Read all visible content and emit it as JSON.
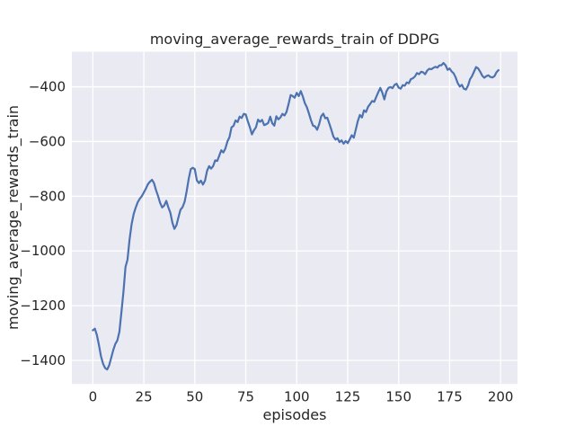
{
  "chart_data": {
    "type": "line",
    "title": "moving_average_rewards_train of DDPG",
    "xlabel": "episodes",
    "ylabel": "moving_average_rewards_train",
    "grid": true,
    "legend_position": "none",
    "xlim": [
      -10.3,
      208.3
    ],
    "ylim": [
      -1486,
      -272
    ],
    "x_ticks": [
      0,
      25,
      50,
      75,
      100,
      125,
      150,
      175,
      200
    ],
    "x_tick_labels": [
      "0",
      "25",
      "50",
      "75",
      "100",
      "125",
      "150",
      "175",
      "200"
    ],
    "y_ticks": [
      -400,
      -600,
      -800,
      -1000,
      -1200,
      -1400
    ],
    "y_tick_labels": [
      "−400",
      "−600",
      "−800",
      "−1000",
      "−1200",
      "−1400"
    ],
    "style": {
      "figure_bg": "#ffffff",
      "axes_bg": "#EAEAF2",
      "grid_color": "#ffffff",
      "line_color": "#4C72B0",
      "text_color": "#262626"
    },
    "series": [
      {
        "name": "moving_average_rewards_train",
        "x_start": 0,
        "x_step": 1,
        "values": [
          -1290,
          -1284,
          -1308,
          -1345,
          -1385,
          -1412,
          -1428,
          -1433,
          -1418,
          -1390,
          -1362,
          -1340,
          -1327,
          -1295,
          -1225,
          -1150,
          -1058,
          -1032,
          -958,
          -902,
          -865,
          -842,
          -822,
          -809,
          -800,
          -786,
          -772,
          -756,
          -747,
          -740,
          -752,
          -778,
          -800,
          -824,
          -841,
          -834,
          -817,
          -840,
          -860,
          -897,
          -919,
          -906,
          -876,
          -849,
          -840,
          -820,
          -783,
          -737,
          -701,
          -696,
          -701,
          -742,
          -752,
          -743,
          -757,
          -743,
          -708,
          -690,
          -699,
          -690,
          -669,
          -671,
          -652,
          -632,
          -640,
          -625,
          -600,
          -584,
          -548,
          -543,
          -523,
          -529,
          -509,
          -514,
          -499,
          -501,
          -526,
          -548,
          -574,
          -559,
          -548,
          -520,
          -528,
          -521,
          -540,
          -537,
          -532,
          -509,
          -533,
          -542,
          -508,
          -519,
          -512,
          -499,
          -505,
          -492,
          -463,
          -430,
          -434,
          -440,
          -422,
          -434,
          -416,
          -436,
          -460,
          -475,
          -498,
          -523,
          -542,
          -545,
          -557,
          -537,
          -508,
          -498,
          -515,
          -513,
          -535,
          -557,
          -582,
          -593,
          -588,
          -602,
          -596,
          -608,
          -598,
          -606,
          -592,
          -577,
          -586,
          -555,
          -525,
          -503,
          -512,
          -486,
          -492,
          -473,
          -463,
          -452,
          -455,
          -437,
          -420,
          -404,
          -422,
          -446,
          -417,
          -404,
          -401,
          -405,
          -393,
          -389,
          -403,
          -407,
          -394,
          -396,
          -384,
          -387,
          -372,
          -369,
          -362,
          -350,
          -354,
          -345,
          -347,
          -354,
          -341,
          -334,
          -336,
          -331,
          -327,
          -330,
          -322,
          -321,
          -313,
          -321,
          -338,
          -333,
          -344,
          -351,
          -366,
          -387,
          -399,
          -393,
          -407,
          -410,
          -396,
          -373,
          -361,
          -344,
          -328,
          -333,
          -345,
          -359,
          -367,
          -361,
          -358,
          -364,
          -366,
          -361,
          -347,
          -339
        ]
      }
    ]
  }
}
